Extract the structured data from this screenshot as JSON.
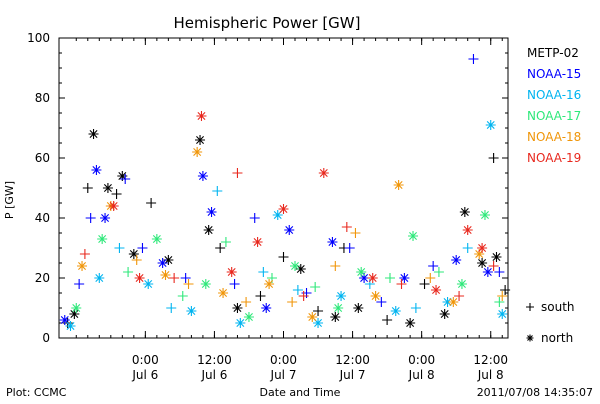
{
  "chart_data": {
    "type": "scatter",
    "title": "Hemispheric Power [GW]",
    "xlabel": "Date and Time",
    "ylabel": "P [GW]",
    "ylim": [
      0,
      100
    ],
    "yticks": [
      0,
      20,
      40,
      60,
      80,
      100
    ],
    "xlim": [
      "2011-07-05 09:00",
      "2011-07-08 15:00"
    ],
    "xticks": [
      {
        "at": "2011-07-06 00:00",
        "time": "0:00",
        "day": "Jul 6"
      },
      {
        "at": "2011-07-06 12:00",
        "time": "12:00",
        "day": "Jul 6"
      },
      {
        "at": "2011-07-07 00:00",
        "time": "0:00",
        "day": "Jul 7"
      },
      {
        "at": "2011-07-07 12:00",
        "time": "12:00",
        "day": "Jul 7"
      },
      {
        "at": "2011-07-08 00:00",
        "time": "0:00",
        "day": "Jul 8"
      },
      {
        "at": "2011-07-08 12:00",
        "time": "12:00",
        "day": "Jul 8"
      }
    ],
    "minor_ticks_per_interval": 6,
    "legend_placement": "right",
    "marker_key": [
      {
        "symbol": "+",
        "label": "south"
      },
      {
        "symbol": "*",
        "label": "north"
      }
    ],
    "series": [
      {
        "name": "METP-02",
        "color": "#000000",
        "points": [
          {
            "x": "2011-07-05 10:30",
            "y": 5,
            "m": "+"
          },
          {
            "x": "2011-07-05 11:40",
            "y": 8,
            "m": "*"
          },
          {
            "x": "2011-07-05 14:00",
            "y": 50,
            "m": "+"
          },
          {
            "x": "2011-07-05 15:00",
            "y": 68,
            "m": "*"
          },
          {
            "x": "2011-07-05 17:30",
            "y": 50,
            "m": "*"
          },
          {
            "x": "2011-07-05 19:00",
            "y": 48,
            "m": "+"
          },
          {
            "x": "2011-07-05 20:00",
            "y": 54,
            "m": "*"
          },
          {
            "x": "2011-07-05 22:00",
            "y": 28,
            "m": "*"
          },
          {
            "x": "2011-07-06 01:00",
            "y": 45,
            "m": "+"
          },
          {
            "x": "2011-07-06 04:00",
            "y": 26,
            "m": "*"
          },
          {
            "x": "2011-07-06 09:30",
            "y": 66,
            "m": "*"
          },
          {
            "x": "2011-07-06 11:00",
            "y": 36,
            "m": "*"
          },
          {
            "x": "2011-07-06 13:00",
            "y": 30,
            "m": "+"
          },
          {
            "x": "2011-07-06 16:00",
            "y": 10,
            "m": "*"
          },
          {
            "x": "2011-07-06 20:00",
            "y": 14,
            "m": "+"
          },
          {
            "x": "2011-07-07 00:00",
            "y": 27,
            "m": "+"
          },
          {
            "x": "2011-07-07 03:00",
            "y": 23,
            "m": "*"
          },
          {
            "x": "2011-07-07 06:00",
            "y": 9,
            "m": "+"
          },
          {
            "x": "2011-07-07 09:00",
            "y": 7,
            "m": "*"
          },
          {
            "x": "2011-07-07 10:30",
            "y": 30,
            "m": "+"
          },
          {
            "x": "2011-07-07 13:00",
            "y": 10,
            "m": "*"
          },
          {
            "x": "2011-07-07 18:00",
            "y": 6,
            "m": "+"
          },
          {
            "x": "2011-07-07 22:00",
            "y": 5,
            "m": "*"
          },
          {
            "x": "2011-07-08 00:30",
            "y": 18,
            "m": "+"
          },
          {
            "x": "2011-07-08 04:00",
            "y": 8,
            "m": "*"
          },
          {
            "x": "2011-07-08 07:30",
            "y": 42,
            "m": "*"
          },
          {
            "x": "2011-07-08 10:30",
            "y": 25,
            "m": "*"
          },
          {
            "x": "2011-07-08 12:30",
            "y": 60,
            "m": "+"
          },
          {
            "x": "2011-07-08 13:00",
            "y": 27,
            "m": "*"
          },
          {
            "x": "2011-07-08 14:30",
            "y": 16,
            "m": "+"
          }
        ]
      },
      {
        "name": "NOAA-15",
        "color": "#0000ff",
        "points": [
          {
            "x": "2011-07-05 10:00",
            "y": 6,
            "m": "*"
          },
          {
            "x": "2011-07-05 12:30",
            "y": 18,
            "m": "+"
          },
          {
            "x": "2011-07-05 14:30",
            "y": 40,
            "m": "+"
          },
          {
            "x": "2011-07-05 15:30",
            "y": 56,
            "m": "*"
          },
          {
            "x": "2011-07-05 17:00",
            "y": 40,
            "m": "*"
          },
          {
            "x": "2011-07-05 20:30",
            "y": 53,
            "m": "+"
          },
          {
            "x": "2011-07-05 23:30",
            "y": 30,
            "m": "+"
          },
          {
            "x": "2011-07-06 03:00",
            "y": 25,
            "m": "*"
          },
          {
            "x": "2011-07-06 07:00",
            "y": 20,
            "m": "+"
          },
          {
            "x": "2011-07-06 10:00",
            "y": 54,
            "m": "*"
          },
          {
            "x": "2011-07-06 11:30",
            "y": 42,
            "m": "*"
          },
          {
            "x": "2011-07-06 15:30",
            "y": 18,
            "m": "+"
          },
          {
            "x": "2011-07-06 19:00",
            "y": 40,
            "m": "+"
          },
          {
            "x": "2011-07-06 21:00",
            "y": 10,
            "m": "*"
          },
          {
            "x": "2011-07-07 01:00",
            "y": 36,
            "m": "*"
          },
          {
            "x": "2011-07-07 04:00",
            "y": 15,
            "m": "+"
          },
          {
            "x": "2011-07-07 08:30",
            "y": 32,
            "m": "*"
          },
          {
            "x": "2011-07-07 11:30",
            "y": 30,
            "m": "+"
          },
          {
            "x": "2011-07-07 14:00",
            "y": 20,
            "m": "*"
          },
          {
            "x": "2011-07-07 17:00",
            "y": 12,
            "m": "+"
          },
          {
            "x": "2011-07-07 21:00",
            "y": 20,
            "m": "*"
          },
          {
            "x": "2011-07-08 02:00",
            "y": 24,
            "m": "+"
          },
          {
            "x": "2011-07-08 06:00",
            "y": 26,
            "m": "*"
          },
          {
            "x": "2011-07-08 09:00",
            "y": 93,
            "m": "+"
          },
          {
            "x": "2011-07-08 11:30",
            "y": 22,
            "m": "*"
          },
          {
            "x": "2011-07-08 13:30",
            "y": 22,
            "m": "+"
          }
        ]
      },
      {
        "name": "NOAA-16",
        "color": "#00b4f0",
        "points": [
          {
            "x": "2011-07-05 11:00",
            "y": 4,
            "m": "*"
          },
          {
            "x": "2011-07-05 16:00",
            "y": 20,
            "m": "*"
          },
          {
            "x": "2011-07-05 19:30",
            "y": 30,
            "m": "+"
          },
          {
            "x": "2011-07-06 00:30",
            "y": 18,
            "m": "*"
          },
          {
            "x": "2011-07-06 04:30",
            "y": 10,
            "m": "+"
          },
          {
            "x": "2011-07-06 08:00",
            "y": 9,
            "m": "*"
          },
          {
            "x": "2011-07-06 12:30",
            "y": 49,
            "m": "+"
          },
          {
            "x": "2011-07-06 16:30",
            "y": 5,
            "m": "*"
          },
          {
            "x": "2011-07-06 20:30",
            "y": 22,
            "m": "+"
          },
          {
            "x": "2011-07-06 23:00",
            "y": 41,
            "m": "*"
          },
          {
            "x": "2011-07-07 02:30",
            "y": 16,
            "m": "+"
          },
          {
            "x": "2011-07-07 06:00",
            "y": 5,
            "m": "*"
          },
          {
            "x": "2011-07-07 10:00",
            "y": 14,
            "m": "*"
          },
          {
            "x": "2011-07-07 15:00",
            "y": 18,
            "m": "+"
          },
          {
            "x": "2011-07-07 19:30",
            "y": 9,
            "m": "*"
          },
          {
            "x": "2011-07-07 23:00",
            "y": 10,
            "m": "+"
          },
          {
            "x": "2011-07-08 04:30",
            "y": 12,
            "m": "*"
          },
          {
            "x": "2011-07-08 08:00",
            "y": 30,
            "m": "+"
          },
          {
            "x": "2011-07-08 12:00",
            "y": 71,
            "m": "*"
          },
          {
            "x": "2011-07-08 14:00",
            "y": 8,
            "m": "*"
          }
        ]
      },
      {
        "name": "NOAA-17",
        "color": "#2ee87a",
        "points": [
          {
            "x": "2011-07-05 12:00",
            "y": 10,
            "m": "*"
          },
          {
            "x": "2011-07-05 16:30",
            "y": 33,
            "m": "*"
          },
          {
            "x": "2011-07-05 21:00",
            "y": 22,
            "m": "+"
          },
          {
            "x": "2011-07-06 02:00",
            "y": 33,
            "m": "*"
          },
          {
            "x": "2011-07-06 06:30",
            "y": 14,
            "m": "+"
          },
          {
            "x": "2011-07-06 10:30",
            "y": 18,
            "m": "*"
          },
          {
            "x": "2011-07-06 14:00",
            "y": 32,
            "m": "+"
          },
          {
            "x": "2011-07-06 18:00",
            "y": 7,
            "m": "*"
          },
          {
            "x": "2011-07-06 22:00",
            "y": 20,
            "m": "+"
          },
          {
            "x": "2011-07-07 02:00",
            "y": 24,
            "m": "*"
          },
          {
            "x": "2011-07-07 05:30",
            "y": 17,
            "m": "+"
          },
          {
            "x": "2011-07-07 09:30",
            "y": 10,
            "m": "*"
          },
          {
            "x": "2011-07-07 13:30",
            "y": 22,
            "m": "*"
          },
          {
            "x": "2011-07-07 18:30",
            "y": 20,
            "m": "+"
          },
          {
            "x": "2011-07-07 22:30",
            "y": 34,
            "m": "*"
          },
          {
            "x": "2011-07-08 03:00",
            "y": 22,
            "m": "+"
          },
          {
            "x": "2011-07-08 07:00",
            "y": 18,
            "m": "*"
          },
          {
            "x": "2011-07-08 11:00",
            "y": 41,
            "m": "*"
          },
          {
            "x": "2011-07-08 13:30",
            "y": 12,
            "m": "+"
          }
        ]
      },
      {
        "name": "NOAA-18",
        "color": "#f0960a",
        "points": [
          {
            "x": "2011-07-05 13:00",
            "y": 24,
            "m": "*"
          },
          {
            "x": "2011-07-05 18:00",
            "y": 44,
            "m": "*"
          },
          {
            "x": "2011-07-05 22:30",
            "y": 26,
            "m": "+"
          },
          {
            "x": "2011-07-06 03:30",
            "y": 21,
            "m": "*"
          },
          {
            "x": "2011-07-06 07:30",
            "y": 18,
            "m": "+"
          },
          {
            "x": "2011-07-06 09:00",
            "y": 62,
            "m": "*"
          },
          {
            "x": "2011-07-06 13:30",
            "y": 15,
            "m": "*"
          },
          {
            "x": "2011-07-06 17:30",
            "y": 12,
            "m": "+"
          },
          {
            "x": "2011-07-06 21:30",
            "y": 18,
            "m": "*"
          },
          {
            "x": "2011-07-07 01:30",
            "y": 12,
            "m": "+"
          },
          {
            "x": "2011-07-07 05:00",
            "y": 7,
            "m": "*"
          },
          {
            "x": "2011-07-07 09:00",
            "y": 24,
            "m": "+"
          },
          {
            "x": "2011-07-07 12:30",
            "y": 35,
            "m": "+"
          },
          {
            "x": "2011-07-07 16:00",
            "y": 14,
            "m": "*"
          },
          {
            "x": "2011-07-07 20:00",
            "y": 51,
            "m": "*"
          },
          {
            "x": "2011-07-08 01:30",
            "y": 20,
            "m": "+"
          },
          {
            "x": "2011-07-08 05:30",
            "y": 12,
            "m": "*"
          },
          {
            "x": "2011-07-08 10:00",
            "y": 28,
            "m": "*"
          },
          {
            "x": "2011-07-08 14:00",
            "y": 14,
            "m": "+"
          }
        ]
      },
      {
        "name": "NOAA-19",
        "color": "#e8281e",
        "points": [
          {
            "x": "2011-07-05 13:30",
            "y": 28,
            "m": "+"
          },
          {
            "x": "2011-07-05 18:30",
            "y": 44,
            "m": "*"
          },
          {
            "x": "2011-07-05 23:00",
            "y": 20,
            "m": "*"
          },
          {
            "x": "2011-07-06 05:00",
            "y": 20,
            "m": "+"
          },
          {
            "x": "2011-07-06 09:45",
            "y": 74,
            "m": "*"
          },
          {
            "x": "2011-07-06 15:00",
            "y": 22,
            "m": "*"
          },
          {
            "x": "2011-07-06 16:00",
            "y": 55,
            "m": "+"
          },
          {
            "x": "2011-07-06 19:30",
            "y": 32,
            "m": "*"
          },
          {
            "x": "2011-07-07 00:00",
            "y": 43,
            "m": "*"
          },
          {
            "x": "2011-07-07 03:30",
            "y": 14,
            "m": "+"
          },
          {
            "x": "2011-07-07 07:00",
            "y": 55,
            "m": "*"
          },
          {
            "x": "2011-07-07 11:00",
            "y": 37,
            "m": "+"
          },
          {
            "x": "2011-07-07 15:30",
            "y": 20,
            "m": "*"
          },
          {
            "x": "2011-07-07 20:30",
            "y": 18,
            "m": "+"
          },
          {
            "x": "2011-07-08 02:30",
            "y": 16,
            "m": "*"
          },
          {
            "x": "2011-07-08 06:30",
            "y": 14,
            "m": "+"
          },
          {
            "x": "2011-07-08 08:00",
            "y": 36,
            "m": "*"
          },
          {
            "x": "2011-07-08 10:30",
            "y": 30,
            "m": "*"
          },
          {
            "x": "2011-07-08 12:30",
            "y": 24,
            "m": "+"
          }
        ]
      }
    ]
  },
  "footer": {
    "plot_credit": "Plot: CCMC",
    "timestamp": "2011/07/08 14:35:07"
  }
}
